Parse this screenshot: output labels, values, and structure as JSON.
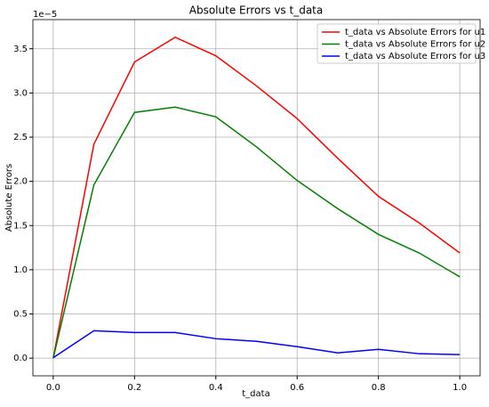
{
  "chart_data": {
    "type": "line",
    "title": "Absolute Errors vs t_data",
    "xlabel": "t_data",
    "ylabel": "Absolute Errors",
    "y_offset_label": "1e−5",
    "x": [
      0.0,
      0.1,
      0.2,
      0.3,
      0.4,
      0.5,
      0.6,
      0.7,
      0.8,
      0.9,
      1.0
    ],
    "series": [
      {
        "name": "t_data vs Absolute Errors for u1",
        "color": "#ff0000",
        "values": [
          0,
          2.42,
          3.35,
          3.63,
          3.42,
          3.08,
          2.71,
          2.26,
          1.83,
          1.53,
          1.19
        ]
      },
      {
        "name": "t_data vs Absolute Errors for u2",
        "color": "#008000",
        "values": [
          0,
          1.96,
          2.78,
          2.84,
          2.73,
          2.39,
          2.01,
          1.69,
          1.4,
          1.19,
          0.92
        ]
      },
      {
        "name": "t_data vs Absolute Errors for u3",
        "color": "#0000ff",
        "values": [
          0.005,
          0.31,
          0.29,
          0.29,
          0.22,
          0.19,
          0.13,
          0.06,
          0.1,
          0.05,
          0.04
        ]
      }
    ],
    "xlim": [
      -0.05,
      1.05
    ],
    "ylim": [
      -0.2,
      3.83
    ],
    "xticks": [
      {
        "value": 0,
        "label": "0.0"
      },
      0.2,
      0.4,
      0.6,
      0.8,
      {
        "value": 1,
        "label": "1.0"
      }
    ],
    "yticks": [
      {
        "value": 0,
        "label": "0.0"
      },
      0.5,
      {
        "value": 1,
        "label": "1.0"
      },
      1.5,
      {
        "value": 2,
        "label": "2.0"
      },
      2.5,
      {
        "value": 3,
        "label": "3.0"
      },
      3.5
    ],
    "grid": true,
    "legend": "upper-right"
  }
}
